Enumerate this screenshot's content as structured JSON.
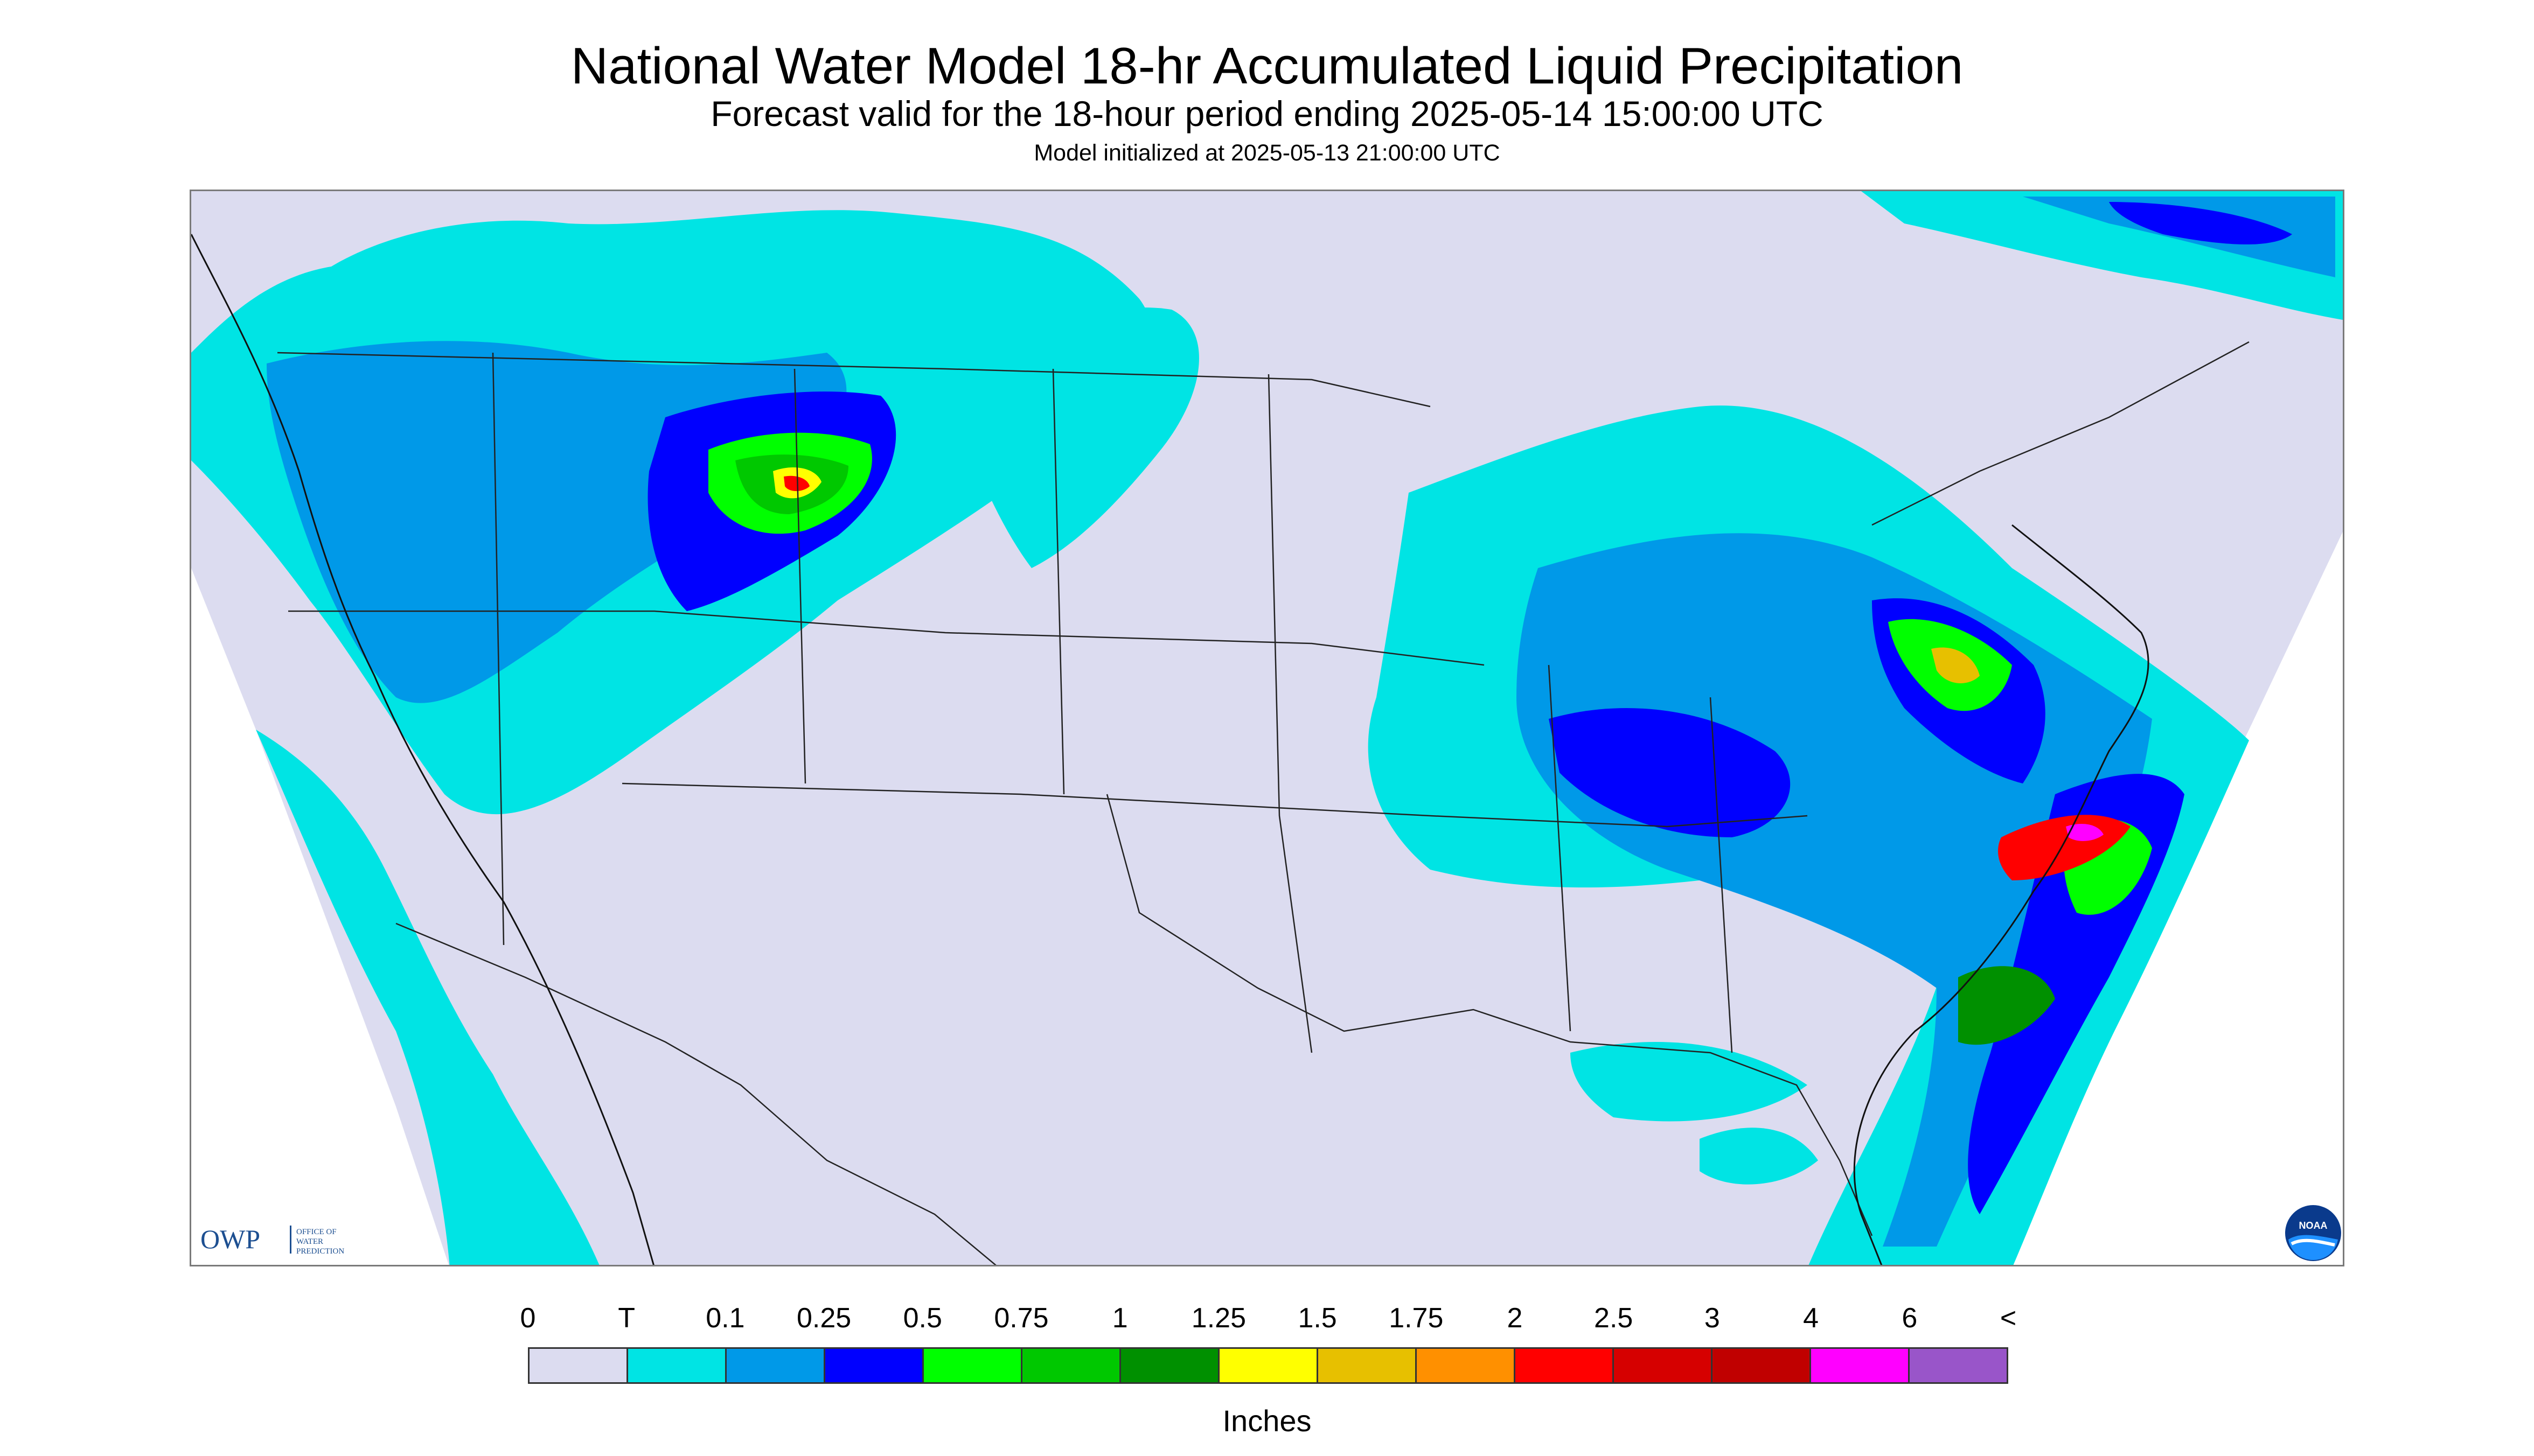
{
  "header": {
    "title": "National Water Model 18-hr Accumulated Liquid Precipitation",
    "subtitle": "Forecast valid for the 18-hour period ending 2025-05-14 15:00:00 UTC",
    "init_line": "Model initialized at 2025-05-13 21:00:00 UTC"
  },
  "colors": {
    "no_data_land": "#ffffff",
    "zero": "#dcdcf0",
    "trace": "#00e4e4",
    "tenth": "#0099e8",
    "quarter": "#0000ff",
    "half": "#00ff00",
    "three_quarters": "#00c800",
    "one": "#009000",
    "one_quarter": "#ffff00",
    "one_half": "#e7c000",
    "one_three_quarters": "#ff9000",
    "two": "#ff0000",
    "two_half": "#d60000",
    "three": "#c00000",
    "four": "#ff00ff",
    "six": "#9955c9"
  },
  "legend": {
    "tick_labels": [
      "0",
      "T",
      "0.1",
      "0.25",
      "0.5",
      "0.75",
      "1",
      "1.25",
      "1.5",
      "1.75",
      "2",
      "2.5",
      "3",
      "4",
      "6",
      "<"
    ],
    "swatch_colors": [
      "#dcdcf0",
      "#00e4e4",
      "#0099e8",
      "#0000ff",
      "#00ff00",
      "#00c800",
      "#009000",
      "#ffff00",
      "#e7c000",
      "#ff9000",
      "#ff0000",
      "#d60000",
      "#c00000",
      "#ff00ff",
      "#9955c9"
    ],
    "units_label": "Inches"
  },
  "logos": {
    "owp_mark": "OWP",
    "owp_text": [
      "OFFICE OF",
      "WATER",
      "PREDICTION"
    ],
    "noaa_text": "NOAA"
  },
  "map": {
    "projection_area": "CONUS",
    "icon": "precipitation-map"
  }
}
